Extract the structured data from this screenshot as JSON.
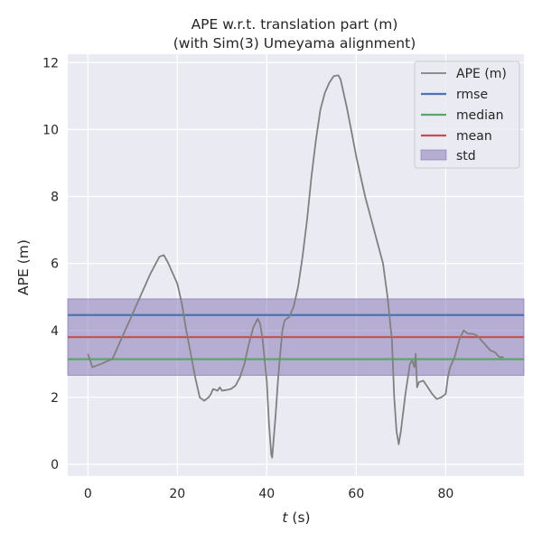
{
  "chart_data": {
    "type": "line",
    "title": "APE w.r.t. translation part (m)",
    "subtitle": "(with Sim(3) Umeyama alignment)",
    "xlabel_italic": "t",
    "xlabel_unit": " (s)",
    "ylabel": "APE (m)",
    "xlim": [
      -4.5,
      97.5
    ],
    "ylim": [
      -0.35,
      12.25
    ],
    "xticks": [
      0,
      20,
      40,
      60,
      80
    ],
    "yticks": [
      0,
      2,
      4,
      6,
      8,
      10,
      12
    ],
    "grid": true,
    "legend": "top-right",
    "colors": {
      "background": "#eaeaf2",
      "grid": "#ffffff",
      "ape": "#808080",
      "rmse": "#4c72b0",
      "median": "#55a868",
      "mean": "#c44e52",
      "std": "#8172b2"
    },
    "series": [
      {
        "name": "APE (m)",
        "x": [
          0,
          0.5,
          1,
          3,
          5.5,
          8,
          10,
          12,
          14,
          16,
          17,
          18,
          19,
          20,
          21,
          22,
          23,
          24,
          25,
          26,
          27,
          27.5,
          28,
          29,
          29.5,
          30,
          31,
          32,
          33,
          34,
          35,
          36,
          37,
          38,
          38.5,
          39,
          40,
          40.5,
          41,
          41.2,
          42,
          42.5,
          43,
          43.5,
          44,
          45,
          46,
          47,
          48,
          49,
          50,
          51,
          52,
          53,
          54,
          55,
          56,
          56.5,
          57,
          58,
          59,
          60,
          62,
          64,
          66,
          67,
          68,
          68.5,
          69,
          69.5,
          70,
          71,
          72,
          72.5,
          73,
          73.3,
          73.6,
          74,
          75,
          76,
          77,
          78,
          79,
          80,
          80.5,
          81,
          82,
          83,
          84,
          85,
          86,
          87,
          88,
          89,
          90,
          91,
          92,
          93
        ],
        "values": [
          3.3,
          3.1,
          2.9,
          3.0,
          3.15,
          3.9,
          4.5,
          5.1,
          5.7,
          6.2,
          6.25,
          6.0,
          5.7,
          5.4,
          4.8,
          4.0,
          3.3,
          2.6,
          2.0,
          1.9,
          2.0,
          2.1,
          2.25,
          2.2,
          2.3,
          2.2,
          2.22,
          2.25,
          2.35,
          2.6,
          3.0,
          3.6,
          4.1,
          4.35,
          4.2,
          3.8,
          2.5,
          1.2,
          0.3,
          0.2,
          1.5,
          2.5,
          3.3,
          4.0,
          4.3,
          4.4,
          4.7,
          5.3,
          6.2,
          7.3,
          8.6,
          9.7,
          10.6,
          11.1,
          11.4,
          11.6,
          11.62,
          11.5,
          11.2,
          10.6,
          9.9,
          9.2,
          8.0,
          7.0,
          6.0,
          5.0,
          3.7,
          2.0,
          1.0,
          0.6,
          1.0,
          2.1,
          3.0,
          3.1,
          2.9,
          3.3,
          2.3,
          2.45,
          2.5,
          2.3,
          2.1,
          1.95,
          2.0,
          2.1,
          2.6,
          2.9,
          3.2,
          3.7,
          4.0,
          3.9,
          3.9,
          3.85,
          3.7,
          3.55,
          3.4,
          3.35,
          3.2,
          3.2
        ]
      }
    ],
    "stats": {
      "rmse": {
        "name": "rmse",
        "value": 4.46
      },
      "median": {
        "name": "median",
        "value": 3.14
      },
      "mean": {
        "name": "mean",
        "value": 3.8
      },
      "std": {
        "name": "std",
        "lower": 2.66,
        "upper": 4.94
      }
    }
  }
}
